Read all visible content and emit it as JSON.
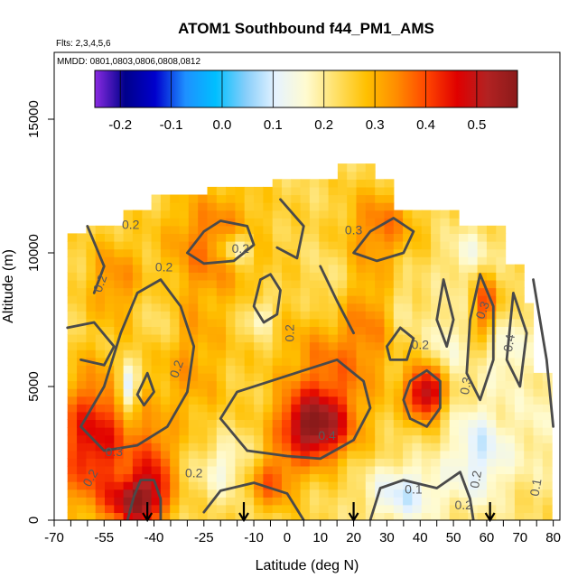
{
  "chart_data": {
    "type": "heatmap",
    "title": "ATOM1 Southbound f44_PM1_AMS",
    "flights_note": "Flts: 2,3,4,5,6",
    "dates_note": "MMDD: 0801,0803,0806,0808,0812",
    "xlabel": "Latitude (deg N)",
    "ylabel": "Altitude (m)",
    "xlim": [
      -70,
      82
    ],
    "ylim": [
      0,
      17500
    ],
    "x_tick_labels": [
      "-70",
      "-55",
      "-40",
      "-25",
      "-10",
      "0",
      "10",
      "20",
      "30",
      "40",
      "50",
      "60",
      "70",
      "80"
    ],
    "y_tick_labels": [
      "0",
      "5000",
      "10000",
      "15000"
    ],
    "colorbar": {
      "range": [
        -0.25,
        0.58
      ],
      "tick_labels": [
        "-0.2",
        "-0.1",
        "0.0",
        "0.1",
        "0.2",
        "0.3",
        "0.4",
        "0.5"
      ],
      "colors": [
        "#8a2be2",
        "#00008b",
        "#0000cd",
        "#1e90ff",
        "#00bfff",
        "#87cefa",
        "#e6f3ff",
        "#fffbd0",
        "#ffe066",
        "#ffc000",
        "#ff8c00",
        "#ff4500",
        "#e00000",
        "#b22222",
        "#8b1a1a"
      ]
    },
    "contour_labels": [
      "0.2",
      "0.2",
      "0.3",
      "0.2",
      "0.2",
      "0.2",
      "0.2",
      "0.4",
      "0.3",
      "0.2",
      "0.1",
      "0.2",
      "0.2",
      "0.3",
      "0.4",
      "0.2",
      "0.1",
      "0.2",
      "0.3"
    ],
    "profile_arrows_latitude": [
      -42,
      -13,
      20,
      61
    ],
    "colors": {
      "contour": "#4a4a4a",
      "arrow": "#000000"
    }
  }
}
